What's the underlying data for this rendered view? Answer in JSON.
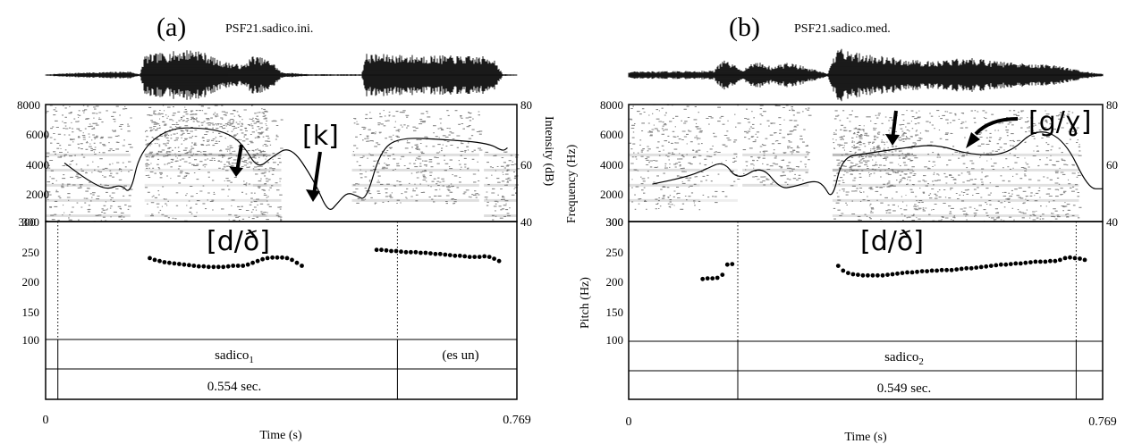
{
  "figure": {
    "panels": [
      {
        "label": "(a)",
        "file": "PSF21.sadico.ini.",
        "spec_annotations": [
          "[k]"
        ],
        "below_annotation": "[d/ð]",
        "word": "sadico",
        "word_sub": "1",
        "extra_interval": "(es un)",
        "duration_text": "0.554 sec.",
        "x_start": "0",
        "x_end": "0.769",
        "xlabel": "Time (s)",
        "freq_ticks": [
          "8000",
          "6000",
          "4000",
          "2000",
          "300"
        ],
        "intensity_ticks": [
          "80",
          "60",
          "40"
        ],
        "intensity_label": "Intensity (dB)",
        "pitch_ticks": [
          "300",
          "250",
          "200",
          "150",
          "100"
        ],
        "freq_label": "",
        "pitch_label": ""
      },
      {
        "label": "(b)",
        "file": "PSF21.sadico.med.",
        "spec_annotations": [
          "[g/ɣ]"
        ],
        "below_annotation": "[d/ð]",
        "word": "sadico",
        "word_sub": "2",
        "extra_interval": "",
        "duration_text": "0.549 sec.",
        "x_start": "0",
        "x_end": "0.769",
        "xlabel": "Time (s)",
        "freq_ticks": [
          "8000",
          "6000",
          "4000",
          "2000",
          "300"
        ],
        "intensity_ticks": [
          "80",
          "60",
          "40"
        ],
        "intensity_label": "",
        "pitch_ticks": [
          "300",
          "250",
          "200",
          "150",
          "100"
        ],
        "freq_label": "Frequency (Hz)",
        "pitch_label": "Pitch (Hz)"
      }
    ]
  },
  "chart_data": [
    {
      "type": "scatter",
      "title": "PSF21.sadico.ini.",
      "xlabel": "Time (s)",
      "ylabel": "",
      "xlim": [
        0,
        0.769
      ],
      "pitch_ylim": [
        100,
        300
      ],
      "frequency_ylim": [
        300,
        8000
      ],
      "intensity_ylim": [
        40,
        80
      ],
      "interval_boundaries": [
        0.02,
        0.574
      ],
      "series": [
        {
          "name": "",
          "x": [
            0.17,
            0.178,
            0.186,
            0.194,
            0.202,
            0.21,
            0.218,
            0.226,
            0.234,
            0.242,
            0.25,
            0.258,
            0.266,
            0.274,
            0.282,
            0.29,
            0.298,
            0.306,
            0.314,
            0.322,
            0.33,
            0.338,
            0.346,
            0.354,
            0.362,
            0.37,
            0.378,
            0.386,
            0.394,
            0.402,
            0.41,
            0.418
          ],
          "y": [
            238,
            235,
            233,
            231,
            230,
            229,
            228,
            227,
            226,
            225,
            224,
            224,
            223,
            223,
            223,
            223,
            224,
            225,
            225,
            225,
            227,
            230,
            233,
            236,
            238,
            239,
            239,
            239,
            238,
            235,
            230,
            225
          ]
        },
        {
          "name": "",
          "x": [
            0.54,
            0.548,
            0.556,
            0.564,
            0.572,
            0.58,
            0.588,
            0.596,
            0.604,
            0.612,
            0.62,
            0.628,
            0.636,
            0.644,
            0.652,
            0.66,
            0.668,
            0.676,
            0.684,
            0.692,
            0.7,
            0.708,
            0.716,
            0.724,
            0.732,
            0.74
          ],
          "y": [
            252,
            252,
            251,
            250,
            250,
            249,
            248,
            248,
            248,
            247,
            247,
            246,
            245,
            245,
            244,
            243,
            242,
            242,
            241,
            240,
            240,
            240,
            241,
            240,
            237,
            233
          ]
        }
      ]
    },
    {
      "type": "scatter",
      "title": "PSF21.sadico.med.",
      "xlabel": "Time (s)",
      "ylabel": "Pitch (Hz)",
      "xlim": [
        0,
        0.769
      ],
      "pitch_ylim": [
        100,
        300
      ],
      "frequency_ylim": [
        300,
        8000
      ],
      "intensity_ylim": [
        40,
        80
      ],
      "interval_boundaries": [
        0.177,
        0.726
      ],
      "series": [
        {
          "name": "",
          "x": [
            0.12,
            0.128,
            0.136,
            0.144,
            0.152,
            0.16,
            0.168
          ],
          "y": [
            204,
            205,
            205,
            206,
            211,
            228,
            229
          ]
        },
        {
          "name": "",
          "x": [
            0.34,
            0.348,
            0.356,
            0.364,
            0.372,
            0.38,
            0.388,
            0.396,
            0.404,
            0.412,
            0.42,
            0.428,
            0.436,
            0.444,
            0.452,
            0.46,
            0.468,
            0.476,
            0.484,
            0.492,
            0.5,
            0.508,
            0.516,
            0.524,
            0.532,
            0.54,
            0.548,
            0.556,
            0.564,
            0.572,
            0.58,
            0.588,
            0.596,
            0.604,
            0.612,
            0.62,
            0.628,
            0.636,
            0.644,
            0.652,
            0.66,
            0.668,
            0.676,
            0.684,
            0.692,
            0.7,
            0.708,
            0.716,
            0.724,
            0.732,
            0.74
          ],
          "y": [
            226,
            218,
            214,
            212,
            211,
            210,
            210,
            210,
            210,
            210,
            211,
            212,
            213,
            214,
            215,
            215,
            216,
            217,
            217,
            218,
            218,
            219,
            219,
            219,
            220,
            221,
            222,
            222,
            223,
            224,
            225,
            226,
            227,
            228,
            228,
            229,
            230,
            230,
            231,
            232,
            233,
            233,
            233,
            234,
            234,
            236,
            239,
            240,
            239,
            238,
            236
          ]
        }
      ]
    }
  ]
}
